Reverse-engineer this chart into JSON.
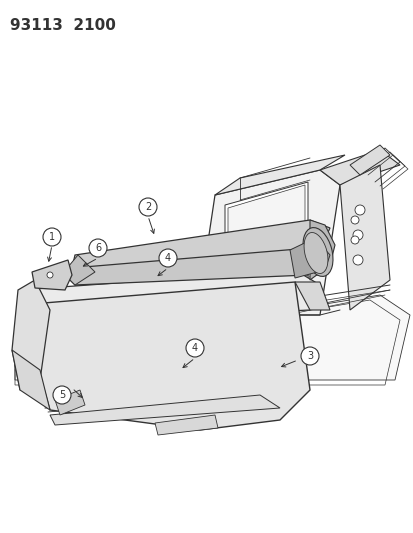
{
  "title": "93113  2100",
  "bg_color": "#ffffff",
  "line_color": "#333333",
  "figsize": [
    4.14,
    5.33
  ],
  "dpi": 100,
  "title_fontsize": 11,
  "label_fontsize": 7.5,
  "label_circle_r": 0.018
}
